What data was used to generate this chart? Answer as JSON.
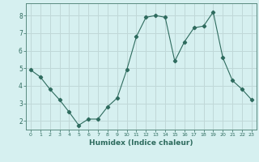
{
  "x": [
    0,
    1,
    2,
    3,
    4,
    5,
    6,
    7,
    8,
    9,
    10,
    11,
    12,
    13,
    14,
    15,
    16,
    17,
    18,
    19,
    20,
    21,
    22,
    23
  ],
  "y": [
    4.9,
    4.5,
    3.8,
    3.2,
    2.5,
    1.75,
    2.1,
    2.1,
    2.8,
    3.3,
    4.9,
    6.8,
    7.9,
    8.0,
    7.9,
    5.4,
    6.5,
    7.3,
    7.4,
    8.2,
    5.6,
    4.3,
    3.8,
    3.2
  ],
  "xlabel": "Humidex (Indice chaleur)",
  "line_color": "#2e6b5e",
  "marker": "D",
  "marker_size": 2.2,
  "bg_color": "#d6f0f0",
  "grid_color": "#c0d8d8",
  "axis_color": "#5a8a80",
  "tick_label_color": "#2e6b5e",
  "xlabel_color": "#2e6b5e",
  "xlim": [
    -0.5,
    23.5
  ],
  "ylim": [
    1.5,
    8.7
  ],
  "yticks": [
    2,
    3,
    4,
    5,
    6,
    7,
    8
  ],
  "xticks": [
    0,
    1,
    2,
    3,
    4,
    5,
    6,
    7,
    8,
    9,
    10,
    11,
    12,
    13,
    14,
    15,
    16,
    17,
    18,
    19,
    20,
    21,
    22,
    23
  ]
}
